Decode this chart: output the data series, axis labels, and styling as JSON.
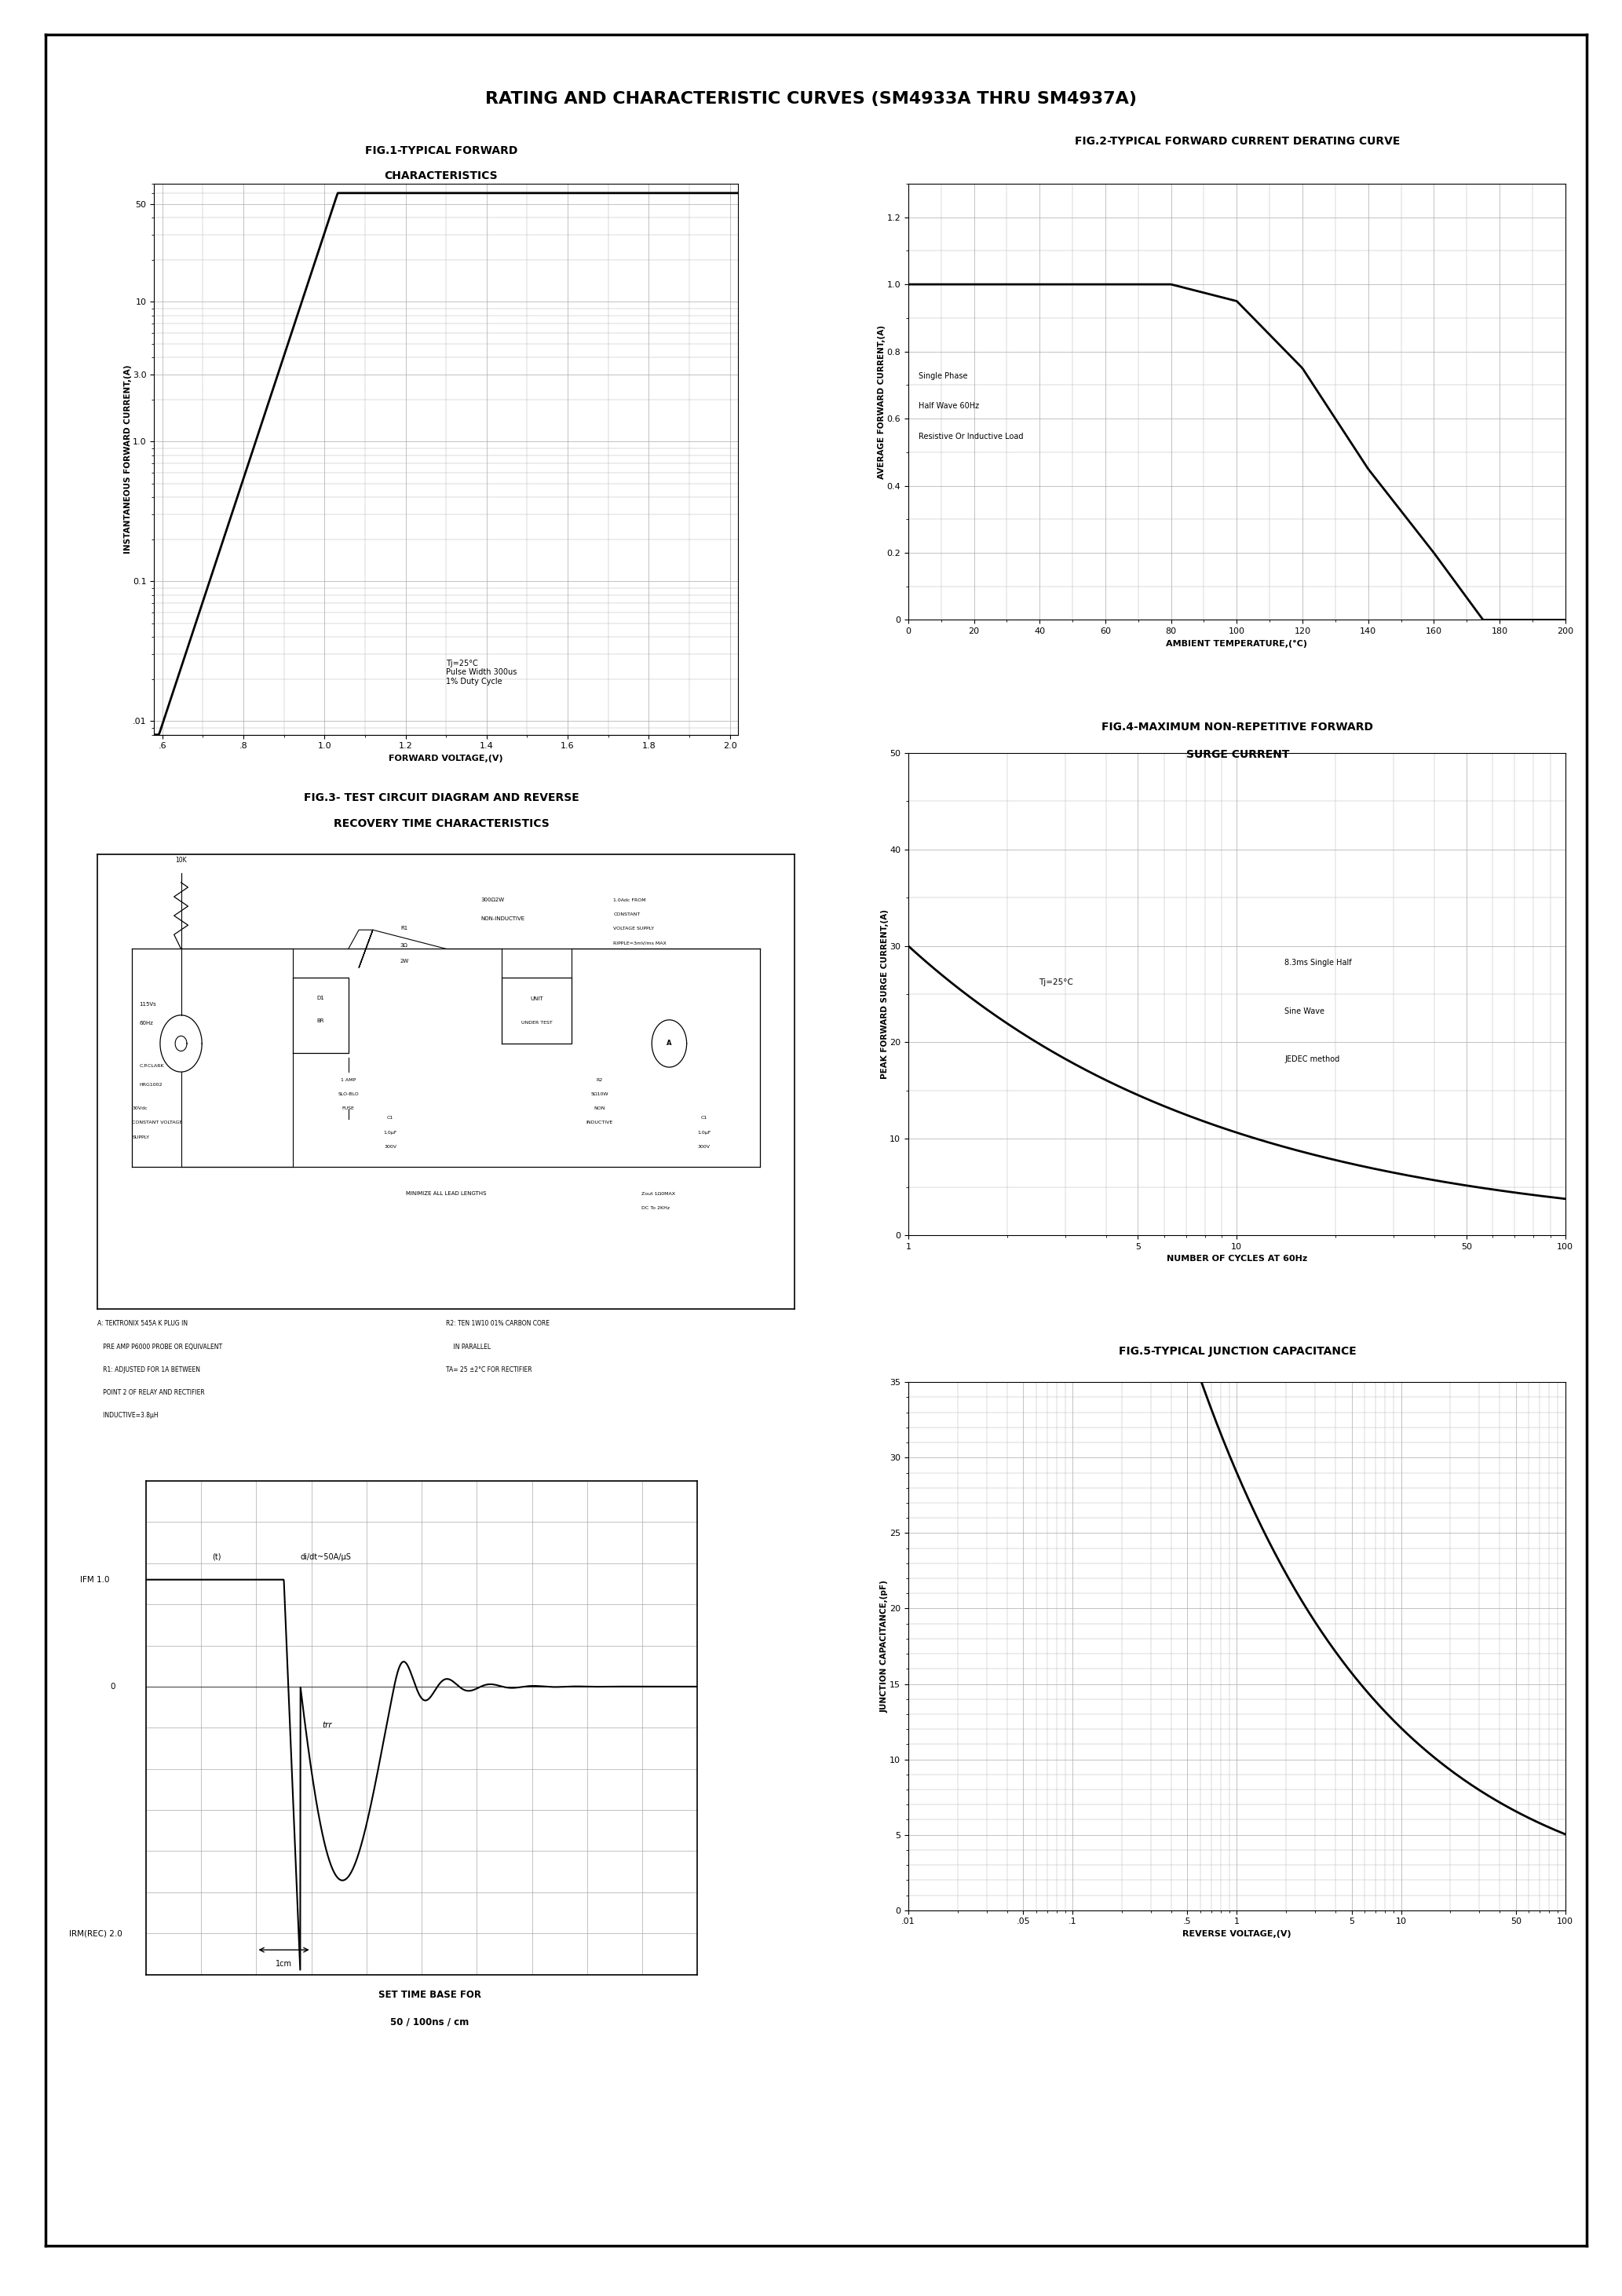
{
  "title": "RATING AND CHARACTERISTIC CURVES (SM4933A THRU SM4937A)",
  "fig1_title_line1": "FIG.1-TYPICAL FORWARD",
  "fig1_title_line2": "CHARACTERISTICS",
  "fig2_title": "FIG.2-TYPICAL FORWARD CURRENT DERATING CURVE",
  "fig3_title_line1": "FIG.3- TEST CIRCUIT DIAGRAM AND REVERSE",
  "fig3_title_line2": "RECOVERY TIME CHARACTERISTICS",
  "fig4_title_line1": "FIG.4-MAXIMUM NON-REPETITIVE FORWARD",
  "fig4_title_line2": "SURGE CURRENT",
  "fig5_title": "FIG.5-TYPICAL JUNCTION CAPACITANCE",
  "fig1_xlabel": "FORWARD VOLTAGE,(V)",
  "fig1_ylabel": "INSTANTANEOUS FORWARD CURRENT,(A)",
  "fig1_xtick_labels": [
    ".6",
    ".8",
    "1.0",
    "1.2",
    "1.4",
    "1.6",
    "1.8",
    "2.0"
  ],
  "fig1_xticks": [
    0.6,
    0.8,
    1.0,
    1.2,
    1.4,
    1.6,
    1.8,
    2.0
  ],
  "fig1_annotation": "Tj=25°C\nPulse Width 300us\n1% Duty Cycle",
  "fig2_xlabel": "AMBIENT TEMPERATURE,(°C)",
  "fig2_ylabel": "AVERAGE FORWARD CURRENT,(A)",
  "fig2_xticks": [
    0,
    20,
    40,
    60,
    80,
    100,
    120,
    140,
    160,
    180,
    200
  ],
  "fig2_yticks": [
    0,
    0.2,
    0.4,
    0.6,
    0.8,
    1.0,
    1.2
  ],
  "fig2_legend_line1": "Single Phase",
  "fig2_legend_line2": "Half Wave 60Hz",
  "fig2_legend_line3": "Resistive Or Inductive Load",
  "fig4_xlabel": "NUMBER OF CYCLES AT 60Hz",
  "fig4_ylabel": "PEAK FORWARD SURGE CURRENT,(A)",
  "fig4_yticks": [
    0,
    10,
    20,
    30,
    40,
    50
  ],
  "fig4_annotation": "Tj=25°C",
  "fig4_legend_line1": "8.3ms Single Half",
  "fig4_legend_line2": "Sine Wave",
  "fig4_legend_line3": "JEDEC method",
  "fig5_xlabel": "REVERSE VOLTAGE,(V)",
  "fig5_ylabel": "JUNCTION CAPACITANCE,(pF)",
  "fig5_yticks": [
    0,
    5,
    10,
    15,
    20,
    25,
    30,
    35
  ],
  "fig5_xtick_labels": [
    ".01",
    ".05",
    ".1",
    ".5",
    "1",
    "5",
    "10",
    "50",
    "100"
  ],
  "fig5_xticks": [
    0.01,
    0.05,
    0.1,
    0.5,
    1,
    5,
    10,
    50,
    100
  ],
  "bg_color": "#ffffff",
  "grid_color": "#aaaaaa",
  "curve_color": "#000000"
}
